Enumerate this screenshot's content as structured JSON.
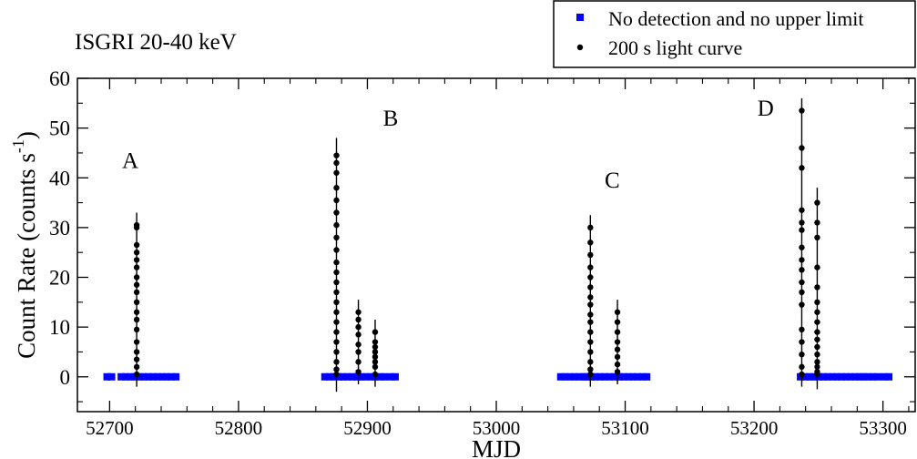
{
  "chart_data": {
    "type": "scatter",
    "title": "ISGRI 20-40 keV",
    "xlabel": "MJD",
    "ylabel_main": "Count Rate (counts s",
    "ylabel_sup": "-1",
    "ylabel_close": ")",
    "xlim": [
      52675,
      53325
    ],
    "ylim": [
      -7,
      60
    ],
    "xticks": [
      52700,
      52800,
      52900,
      53000,
      53100,
      53200,
      53300
    ],
    "xtick_labels": [
      "52700",
      "52800",
      "52900",
      "53000",
      "53100",
      "53200",
      "53300"
    ],
    "yticks": [
      0,
      10,
      20,
      30,
      40,
      50,
      60
    ],
    "ytick_labels": [
      "0",
      "10",
      "20",
      "30",
      "40",
      "50",
      "60"
    ],
    "legend_position": "top-right",
    "colors": {
      "no_detection": "#0000ff",
      "light_curve": "#000000"
    },
    "series": [
      {
        "name": "No detection and no upper limit",
        "marker": "square",
        "segments": [
          [
            52698,
            52703
          ],
          [
            52709,
            52753
          ],
          [
            52867,
            52910
          ],
          [
            52913,
            52916
          ],
          [
            52918,
            52923
          ],
          [
            53050,
            53068
          ],
          [
            53070,
            53088
          ],
          [
            53092,
            53117
          ],
          [
            53236,
            53283
          ],
          [
            53285,
            53297
          ],
          [
            53301,
            53307
          ]
        ],
        "y": 0
      },
      {
        "name": "200 s light curve",
        "marker": "circle",
        "groups": [
          {
            "x": 52721,
            "values": [
              30.5,
              30,
              26.5,
              25,
              23.5,
              22,
              20,
              18.5,
              17,
              15,
              13,
              11.5,
              9.5,
              7,
              5,
              3.5,
              2,
              0.5
            ],
            "err": 2.5
          },
          {
            "x": 52876,
            "values": [
              44.5,
              43,
              41,
              38,
              35.5,
              33,
              30.5,
              28,
              25.5,
              23,
              21,
              19,
              17,
              15,
              13,
              11,
              9,
              7,
              5,
              3,
              1.5,
              0.5
            ],
            "err": 3.5
          },
          {
            "x": 52893,
            "values": [
              13,
              11.5,
              10,
              8.5,
              6.5,
              5,
              3,
              1
            ],
            "err": 2.5
          },
          {
            "x": 52906,
            "values": [
              9,
              7,
              6,
              5,
              4,
              3,
              2,
              0.5
            ],
            "err": 2.5
          },
          {
            "x": 53073,
            "values": [
              30,
              27,
              24.5,
              22,
              20,
              18,
              16,
              14.5,
              12.5,
              11,
              9,
              7,
              5,
              3,
              1.5,
              0.5
            ],
            "err": 2.5
          },
          {
            "x": 53094,
            "values": [
              13,
              11,
              9,
              7,
              5.5,
              4,
              2.5,
              1
            ],
            "err": 2.5
          },
          {
            "x": 53237,
            "values": [
              53.5,
              46,
              42,
              33.5,
              31,
              29.5,
              26,
              23.5,
              21.5,
              19,
              17,
              14.5,
              9.5,
              7,
              4.5,
              2,
              0.5
            ],
            "err": 2.5
          },
          {
            "x": 53249,
            "values": [
              35,
              31,
              28,
              22,
              18,
              15,
              13,
              11,
              9,
              7.5,
              6,
              4.5,
              3,
              2,
              1,
              0.5
            ],
            "err": 3
          }
        ]
      }
    ],
    "annotations": [
      {
        "text": "A",
        "x": 52716,
        "y": 42
      },
      {
        "text": "B",
        "x": 52918,
        "y": 50.5
      },
      {
        "text": "C",
        "x": 53090,
        "y": 38
      },
      {
        "text": "D",
        "x": 53209,
        "y": 52.5
      }
    ]
  }
}
